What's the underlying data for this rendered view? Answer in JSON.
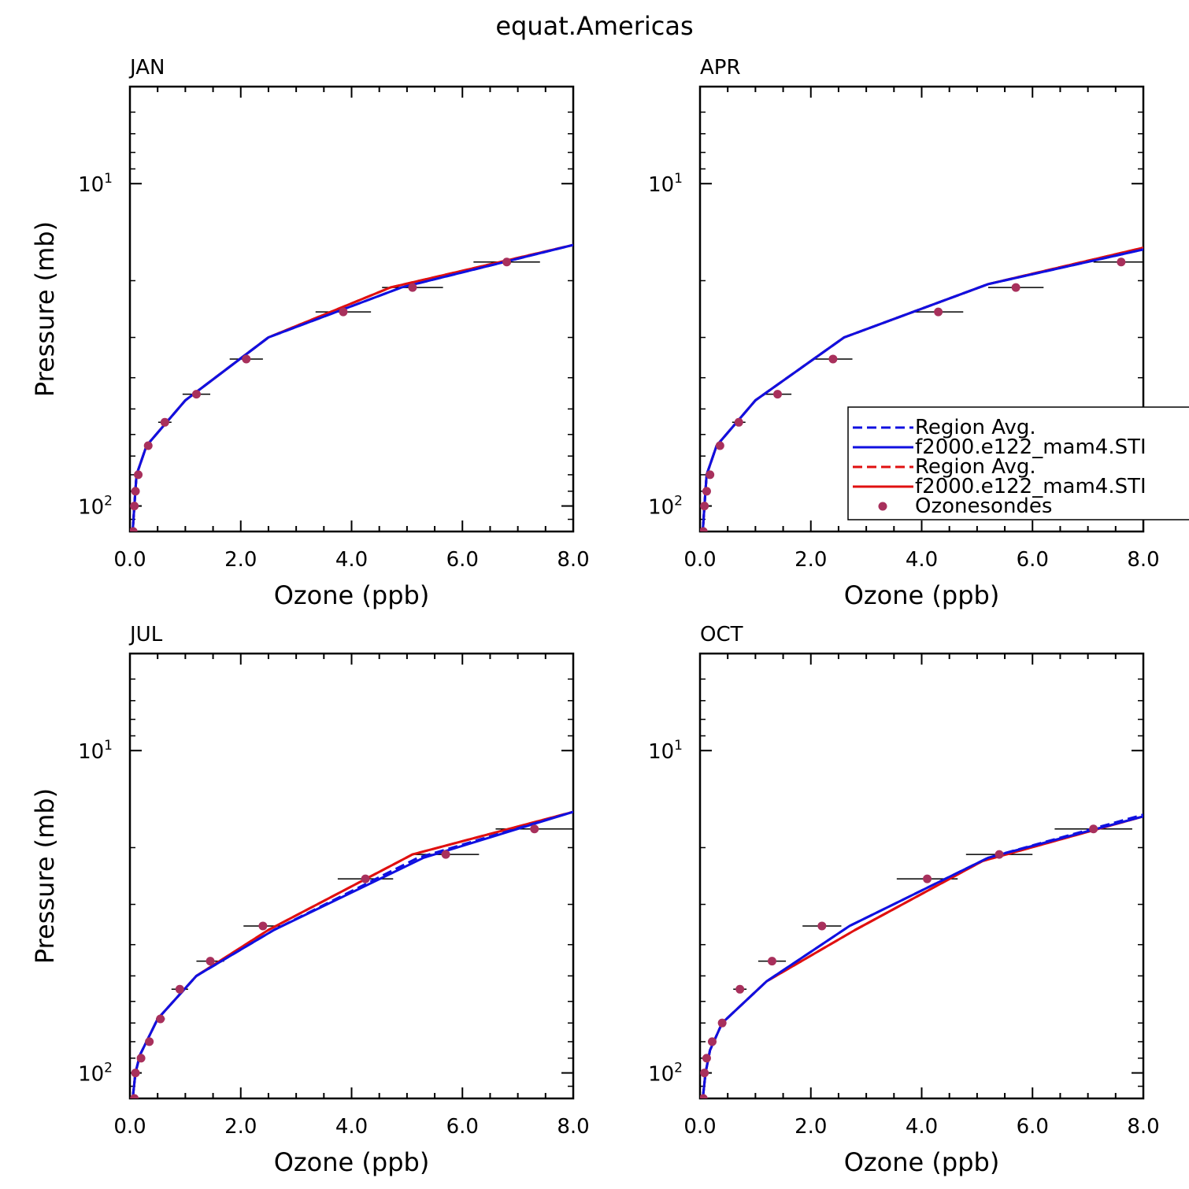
{
  "figure_title": "equat.Americas",
  "colors": {
    "blue": "#1010e0",
    "red": "#e01010",
    "marker": "#a8305c",
    "axis": "#000000"
  },
  "chart_data": [
    {
      "type": "line",
      "panel": "JAN",
      "xlabel": "Ozone (ppb)",
      "ylabel": "Pressure (mb)",
      "xlim": [
        0,
        8
      ],
      "ylim": [
        120,
        5
      ],
      "yscale": "log",
      "x_ticks": [
        "0.0",
        "2.0",
        "4.0",
        "6.0",
        "8.0"
      ],
      "y_ticks": [
        {
          "base": "10",
          "exp": "1"
        },
        {
          "base": "10",
          "exp": "2"
        }
      ],
      "series": [
        {
          "name": "Region Avg.",
          "color": "blue",
          "style": "dashed",
          "points": [
            [
              0.05,
              120
            ],
            [
              0.08,
              100
            ],
            [
              0.12,
              80
            ],
            [
              0.3,
              65
            ],
            [
              1.0,
              47
            ],
            [
              2.5,
              30
            ],
            [
              4.9,
              21
            ],
            [
              8.0,
              15.5
            ]
          ]
        },
        {
          "name": "f2000.e122_mam4.STI",
          "color": "blue",
          "style": "solid",
          "points": [
            [
              0.05,
              120
            ],
            [
              0.08,
              100
            ],
            [
              0.12,
              80
            ],
            [
              0.3,
              65
            ],
            [
              1.0,
              47
            ],
            [
              2.5,
              30
            ],
            [
              4.9,
              21
            ],
            [
              8.0,
              15.5
            ]
          ]
        },
        {
          "name": "Region Avg.",
          "color": "red",
          "style": "dashed",
          "points": [
            [
              0.05,
              120
            ],
            [
              0.08,
              100
            ],
            [
              0.12,
              80
            ],
            [
              0.3,
              65
            ],
            [
              1.0,
              47
            ],
            [
              2.5,
              30
            ],
            [
              4.7,
              21
            ],
            [
              8.0,
              15.5
            ]
          ]
        },
        {
          "name": "f2000.e122_mam4.STI",
          "color": "red",
          "style": "solid",
          "points": [
            [
              0.05,
              120
            ],
            [
              0.08,
              100
            ],
            [
              0.12,
              80
            ],
            [
              0.3,
              65
            ],
            [
              1.0,
              47
            ],
            [
              2.5,
              30
            ],
            [
              4.7,
              21
            ],
            [
              8.0,
              15.5
            ]
          ]
        }
      ],
      "ozonesondes": [
        {
          "p": 120,
          "x": 0.06,
          "xerr": 0.02
        },
        {
          "p": 100,
          "x": 0.08,
          "xerr": 0.02
        },
        {
          "p": 90,
          "x": 0.1,
          "xerr": 0.03
        },
        {
          "p": 80,
          "x": 0.15,
          "xerr": 0.04
        },
        {
          "p": 65,
          "x": 0.33,
          "xerr": 0.06
        },
        {
          "p": 55,
          "x": 0.63,
          "xerr": 0.12
        },
        {
          "p": 45,
          "x": 1.2,
          "xerr": 0.25
        },
        {
          "p": 35,
          "x": 2.1,
          "xerr": 0.3
        },
        {
          "p": 25,
          "x": 3.85,
          "xerr": 0.5
        },
        {
          "p": 21,
          "x": 5.1,
          "xerr": 0.55
        },
        {
          "p": 17.5,
          "x": 6.8,
          "xerr": 0.6
        }
      ]
    },
    {
      "type": "line",
      "panel": "APR",
      "xlabel": "Ozone (ppb)",
      "ylabel": "",
      "xlim": [
        0,
        8
      ],
      "ylim": [
        120,
        5
      ],
      "yscale": "log",
      "x_ticks": [
        "0.0",
        "2.0",
        "4.0",
        "6.0",
        "8.0"
      ],
      "y_ticks": [
        {
          "base": "10",
          "exp": "1"
        },
        {
          "base": "10",
          "exp": "2"
        }
      ],
      "series": [
        {
          "name": "Region Avg.",
          "color": "blue",
          "style": "dashed",
          "points": [
            [
              0.05,
              120
            ],
            [
              0.08,
              100
            ],
            [
              0.12,
              80
            ],
            [
              0.3,
              65
            ],
            [
              1.0,
              47
            ],
            [
              2.6,
              30
            ],
            [
              5.2,
              20.5
            ],
            [
              8.0,
              16
            ]
          ]
        },
        {
          "name": "f2000.e122_mam4.STI",
          "color": "blue",
          "style": "solid",
          "points": [
            [
              0.05,
              120
            ],
            [
              0.08,
              100
            ],
            [
              0.12,
              80
            ],
            [
              0.3,
              65
            ],
            [
              1.0,
              47
            ],
            [
              2.6,
              30
            ],
            [
              5.2,
              20.5
            ],
            [
              8.0,
              16
            ]
          ]
        },
        {
          "name": "Region Avg.",
          "color": "red",
          "style": "dashed",
          "points": [
            [
              0.05,
              120
            ],
            [
              0.08,
              100
            ],
            [
              0.12,
              80
            ],
            [
              0.3,
              65
            ],
            [
              1.0,
              47
            ],
            [
              2.6,
              30
            ],
            [
              5.2,
              20.5
            ],
            [
              8.0,
              15.8
            ]
          ]
        },
        {
          "name": "f2000.e122_mam4.STI",
          "color": "red",
          "style": "solid",
          "points": [
            [
              0.05,
              120
            ],
            [
              0.08,
              100
            ],
            [
              0.12,
              80
            ],
            [
              0.3,
              65
            ],
            [
              1.0,
              47
            ],
            [
              2.6,
              30
            ],
            [
              5.2,
              20.5
            ],
            [
              8.0,
              15.8
            ]
          ]
        }
      ],
      "ozonesondes": [
        {
          "p": 120,
          "x": 0.06,
          "xerr": 0.02
        },
        {
          "p": 100,
          "x": 0.08,
          "xerr": 0.02
        },
        {
          "p": 90,
          "x": 0.12,
          "xerr": 0.03
        },
        {
          "p": 80,
          "x": 0.18,
          "xerr": 0.04
        },
        {
          "p": 65,
          "x": 0.36,
          "xerr": 0.07
        },
        {
          "p": 55,
          "x": 0.7,
          "xerr": 0.12
        },
        {
          "p": 45,
          "x": 1.4,
          "xerr": 0.25
        },
        {
          "p": 35,
          "x": 2.4,
          "xerr": 0.35
        },
        {
          "p": 25,
          "x": 4.3,
          "xerr": 0.45
        },
        {
          "p": 21,
          "x": 5.7,
          "xerr": 0.5
        },
        {
          "p": 17.5,
          "x": 7.6,
          "xerr": 0.5
        }
      ]
    },
    {
      "type": "line",
      "panel": "JUL",
      "xlabel": "Ozone (ppb)",
      "ylabel": "Pressure (mb)",
      "xlim": [
        0,
        8
      ],
      "ylim": [
        120,
        5
      ],
      "yscale": "log",
      "x_ticks": [
        "0.0",
        "2.0",
        "4.0",
        "6.0",
        "8.0"
      ],
      "y_ticks": [
        {
          "base": "10",
          "exp": "1"
        },
        {
          "base": "10",
          "exp": "2"
        }
      ],
      "series": [
        {
          "name": "Region Avg.",
          "color": "blue",
          "style": "dashed",
          "points": [
            [
              0.05,
              120
            ],
            [
              0.1,
              100
            ],
            [
              0.18,
              88
            ],
            [
              0.5,
              68
            ],
            [
              1.2,
              50
            ],
            [
              2.6,
              36
            ],
            [
              5.2,
              21.5
            ],
            [
              8.0,
              15.5
            ]
          ]
        },
        {
          "name": "f2000.e122_mam4.STI",
          "color": "blue",
          "style": "solid",
          "points": [
            [
              0.05,
              120
            ],
            [
              0.1,
              100
            ],
            [
              0.18,
              88
            ],
            [
              0.5,
              68
            ],
            [
              1.2,
              50
            ],
            [
              2.6,
              36
            ],
            [
              5.3,
              21.5
            ],
            [
              8.0,
              15.5
            ]
          ]
        },
        {
          "name": "Region Avg.",
          "color": "red",
          "style": "dashed",
          "points": [
            [
              0.05,
              120
            ],
            [
              0.1,
              100
            ],
            [
              0.18,
              88
            ],
            [
              0.5,
              68
            ],
            [
              1.2,
              50
            ],
            [
              2.5,
              36
            ],
            [
              5.1,
              21
            ],
            [
              8.0,
              15.5
            ]
          ]
        },
        {
          "name": "f2000.e122_mam4.STI",
          "color": "red",
          "style": "solid",
          "points": [
            [
              0.05,
              120
            ],
            [
              0.1,
              100
            ],
            [
              0.18,
              88
            ],
            [
              0.5,
              68
            ],
            [
              1.2,
              50
            ],
            [
              2.5,
              36
            ],
            [
              5.1,
              21
            ],
            [
              8.0,
              15.5
            ]
          ]
        }
      ],
      "ozonesondes": [
        {
          "p": 120,
          "x": 0.08,
          "xerr": 0.02
        },
        {
          "p": 100,
          "x": 0.1,
          "xerr": 0.02
        },
        {
          "p": 90,
          "x": 0.2,
          "xerr": 0.04
        },
        {
          "p": 80,
          "x": 0.35,
          "xerr": 0.06
        },
        {
          "p": 68,
          "x": 0.55,
          "xerr": 0.08
        },
        {
          "p": 55,
          "x": 0.9,
          "xerr": 0.15
        },
        {
          "p": 45,
          "x": 1.45,
          "xerr": 0.25
        },
        {
          "p": 35,
          "x": 2.4,
          "xerr": 0.35
        },
        {
          "p": 25,
          "x": 4.25,
          "xerr": 0.5
        },
        {
          "p": 21,
          "x": 5.7,
          "xerr": 0.6
        },
        {
          "p": 17.5,
          "x": 7.3,
          "xerr": 0.7
        }
      ]
    },
    {
      "type": "line",
      "panel": "OCT",
      "xlabel": "Ozone (ppb)",
      "ylabel": "",
      "xlim": [
        0,
        8
      ],
      "ylim": [
        120,
        5
      ],
      "yscale": "log",
      "x_ticks": [
        "0.0",
        "2.0",
        "4.0",
        "6.0",
        "8.0"
      ],
      "y_ticks": [
        {
          "base": "10",
          "exp": "1"
        },
        {
          "base": "10",
          "exp": "2"
        }
      ],
      "series": [
        {
          "name": "Region Avg.",
          "color": "blue",
          "style": "dashed",
          "points": [
            [
              0.05,
              120
            ],
            [
              0.1,
              100
            ],
            [
              0.18,
              85
            ],
            [
              0.4,
              70
            ],
            [
              1.2,
              52
            ],
            [
              2.7,
              35
            ],
            [
              5.2,
              21.5
            ],
            [
              8.0,
              15.8
            ]
          ]
        },
        {
          "name": "f2000.e122_mam4.STI",
          "color": "blue",
          "style": "solid",
          "points": [
            [
              0.05,
              120
            ],
            [
              0.1,
              100
            ],
            [
              0.18,
              85
            ],
            [
              0.4,
              70
            ],
            [
              1.2,
              52
            ],
            [
              2.7,
              35
            ],
            [
              5.2,
              21.5
            ],
            [
              8.0,
              16
            ]
          ]
        },
        {
          "name": "Region Avg.",
          "color": "red",
          "style": "dashed",
          "points": [
            [
              0.05,
              120
            ],
            [
              0.1,
              100
            ],
            [
              0.18,
              85
            ],
            [
              0.4,
              70
            ],
            [
              1.2,
              52
            ],
            [
              2.8,
              36
            ],
            [
              5.1,
              22
            ],
            [
              8.0,
              16
            ]
          ]
        },
        {
          "name": "f2000.e122_mam4.STI",
          "color": "red",
          "style": "solid",
          "points": [
            [
              0.05,
              120
            ],
            [
              0.1,
              100
            ],
            [
              0.18,
              85
            ],
            [
              0.4,
              70
            ],
            [
              1.2,
              52
            ],
            [
              2.8,
              36
            ],
            [
              5.1,
              22
            ],
            [
              8.0,
              16
            ]
          ]
        }
      ],
      "ozonesondes": [
        {
          "p": 120,
          "x": 0.06,
          "xerr": 0.02
        },
        {
          "p": 100,
          "x": 0.08,
          "xerr": 0.02
        },
        {
          "p": 90,
          "x": 0.12,
          "xerr": 0.03
        },
        {
          "p": 80,
          "x": 0.22,
          "xerr": 0.04
        },
        {
          "p": 70,
          "x": 0.4,
          "xerr": 0.06
        },
        {
          "p": 55,
          "x": 0.72,
          "xerr": 0.12
        },
        {
          "p": 45,
          "x": 1.3,
          "xerr": 0.25
        },
        {
          "p": 35,
          "x": 2.2,
          "xerr": 0.35
        },
        {
          "p": 25,
          "x": 4.1,
          "xerr": 0.55
        },
        {
          "p": 21,
          "x": 5.4,
          "xerr": 0.6
        },
        {
          "p": 17.5,
          "x": 7.1,
          "xerr": 0.7
        }
      ]
    }
  ],
  "legend": {
    "panel": "APR",
    "entries": [
      {
        "label": "Region Avg.",
        "color": "blue",
        "style": "dashed"
      },
      {
        "label": "f2000.e122_mam4.STI",
        "color": "blue",
        "style": "solid"
      },
      {
        "label": "Region Avg.",
        "color": "red",
        "style": "dashed"
      },
      {
        "label": "f2000.e122_mam4.STI",
        "color": "red",
        "style": "solid"
      },
      {
        "label": "Ozonesondes",
        "color": "marker",
        "style": "marker"
      }
    ]
  }
}
